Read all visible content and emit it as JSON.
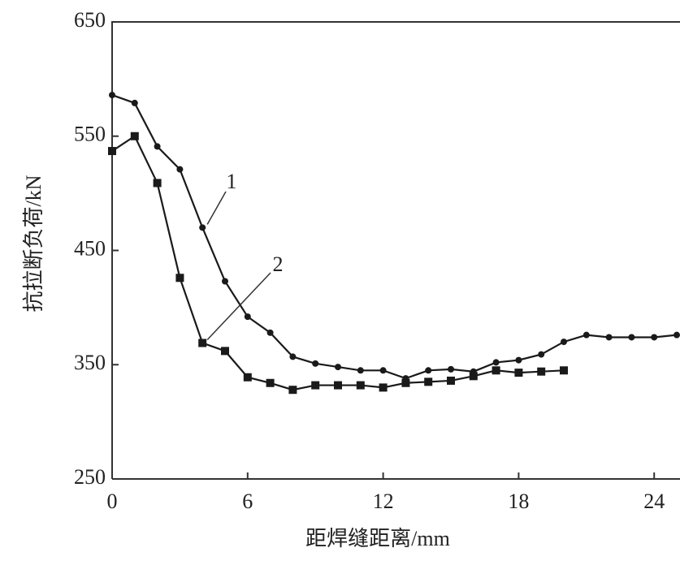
{
  "chart_data": {
    "type": "line",
    "x_label": "距焊缝距离/mm",
    "y_label": "抗拉断负荷/kN",
    "xlim": [
      0,
      25
    ],
    "xticks": [
      0,
      6,
      12,
      18,
      24
    ],
    "ylim": [
      250,
      650
    ],
    "yticks": [
      250,
      350,
      450,
      550,
      650
    ],
    "series": [
      {
        "name": "1",
        "color": "#1a1a1a",
        "marker": "circle",
        "x": [
          0,
          1,
          2,
          3,
          4,
          5,
          6,
          7,
          8,
          9,
          10,
          11,
          12,
          13,
          14,
          15,
          16,
          17,
          18,
          19,
          20,
          21,
          22,
          23,
          24,
          25
        ],
        "values": [
          586,
          579,
          541,
          521,
          470,
          423,
          392,
          378,
          357,
          351,
          348,
          345,
          345,
          338,
          345,
          346,
          344,
          352,
          354,
          359,
          370,
          376,
          374,
          374,
          374,
          376
        ]
      },
      {
        "name": "2",
        "color": "#1a1a1a",
        "marker": "square",
        "x": [
          0,
          1,
          2,
          3,
          4,
          5,
          6,
          7,
          8,
          9,
          10,
          11,
          12,
          13,
          14,
          15,
          16,
          17,
          18,
          19,
          20
        ],
        "values": [
          537,
          550,
          509,
          426,
          369,
          362,
          339,
          334,
          328,
          332,
          332,
          332,
          330,
          334,
          335,
          336,
          340,
          345,
          343,
          344,
          345
        ]
      }
    ]
  }
}
